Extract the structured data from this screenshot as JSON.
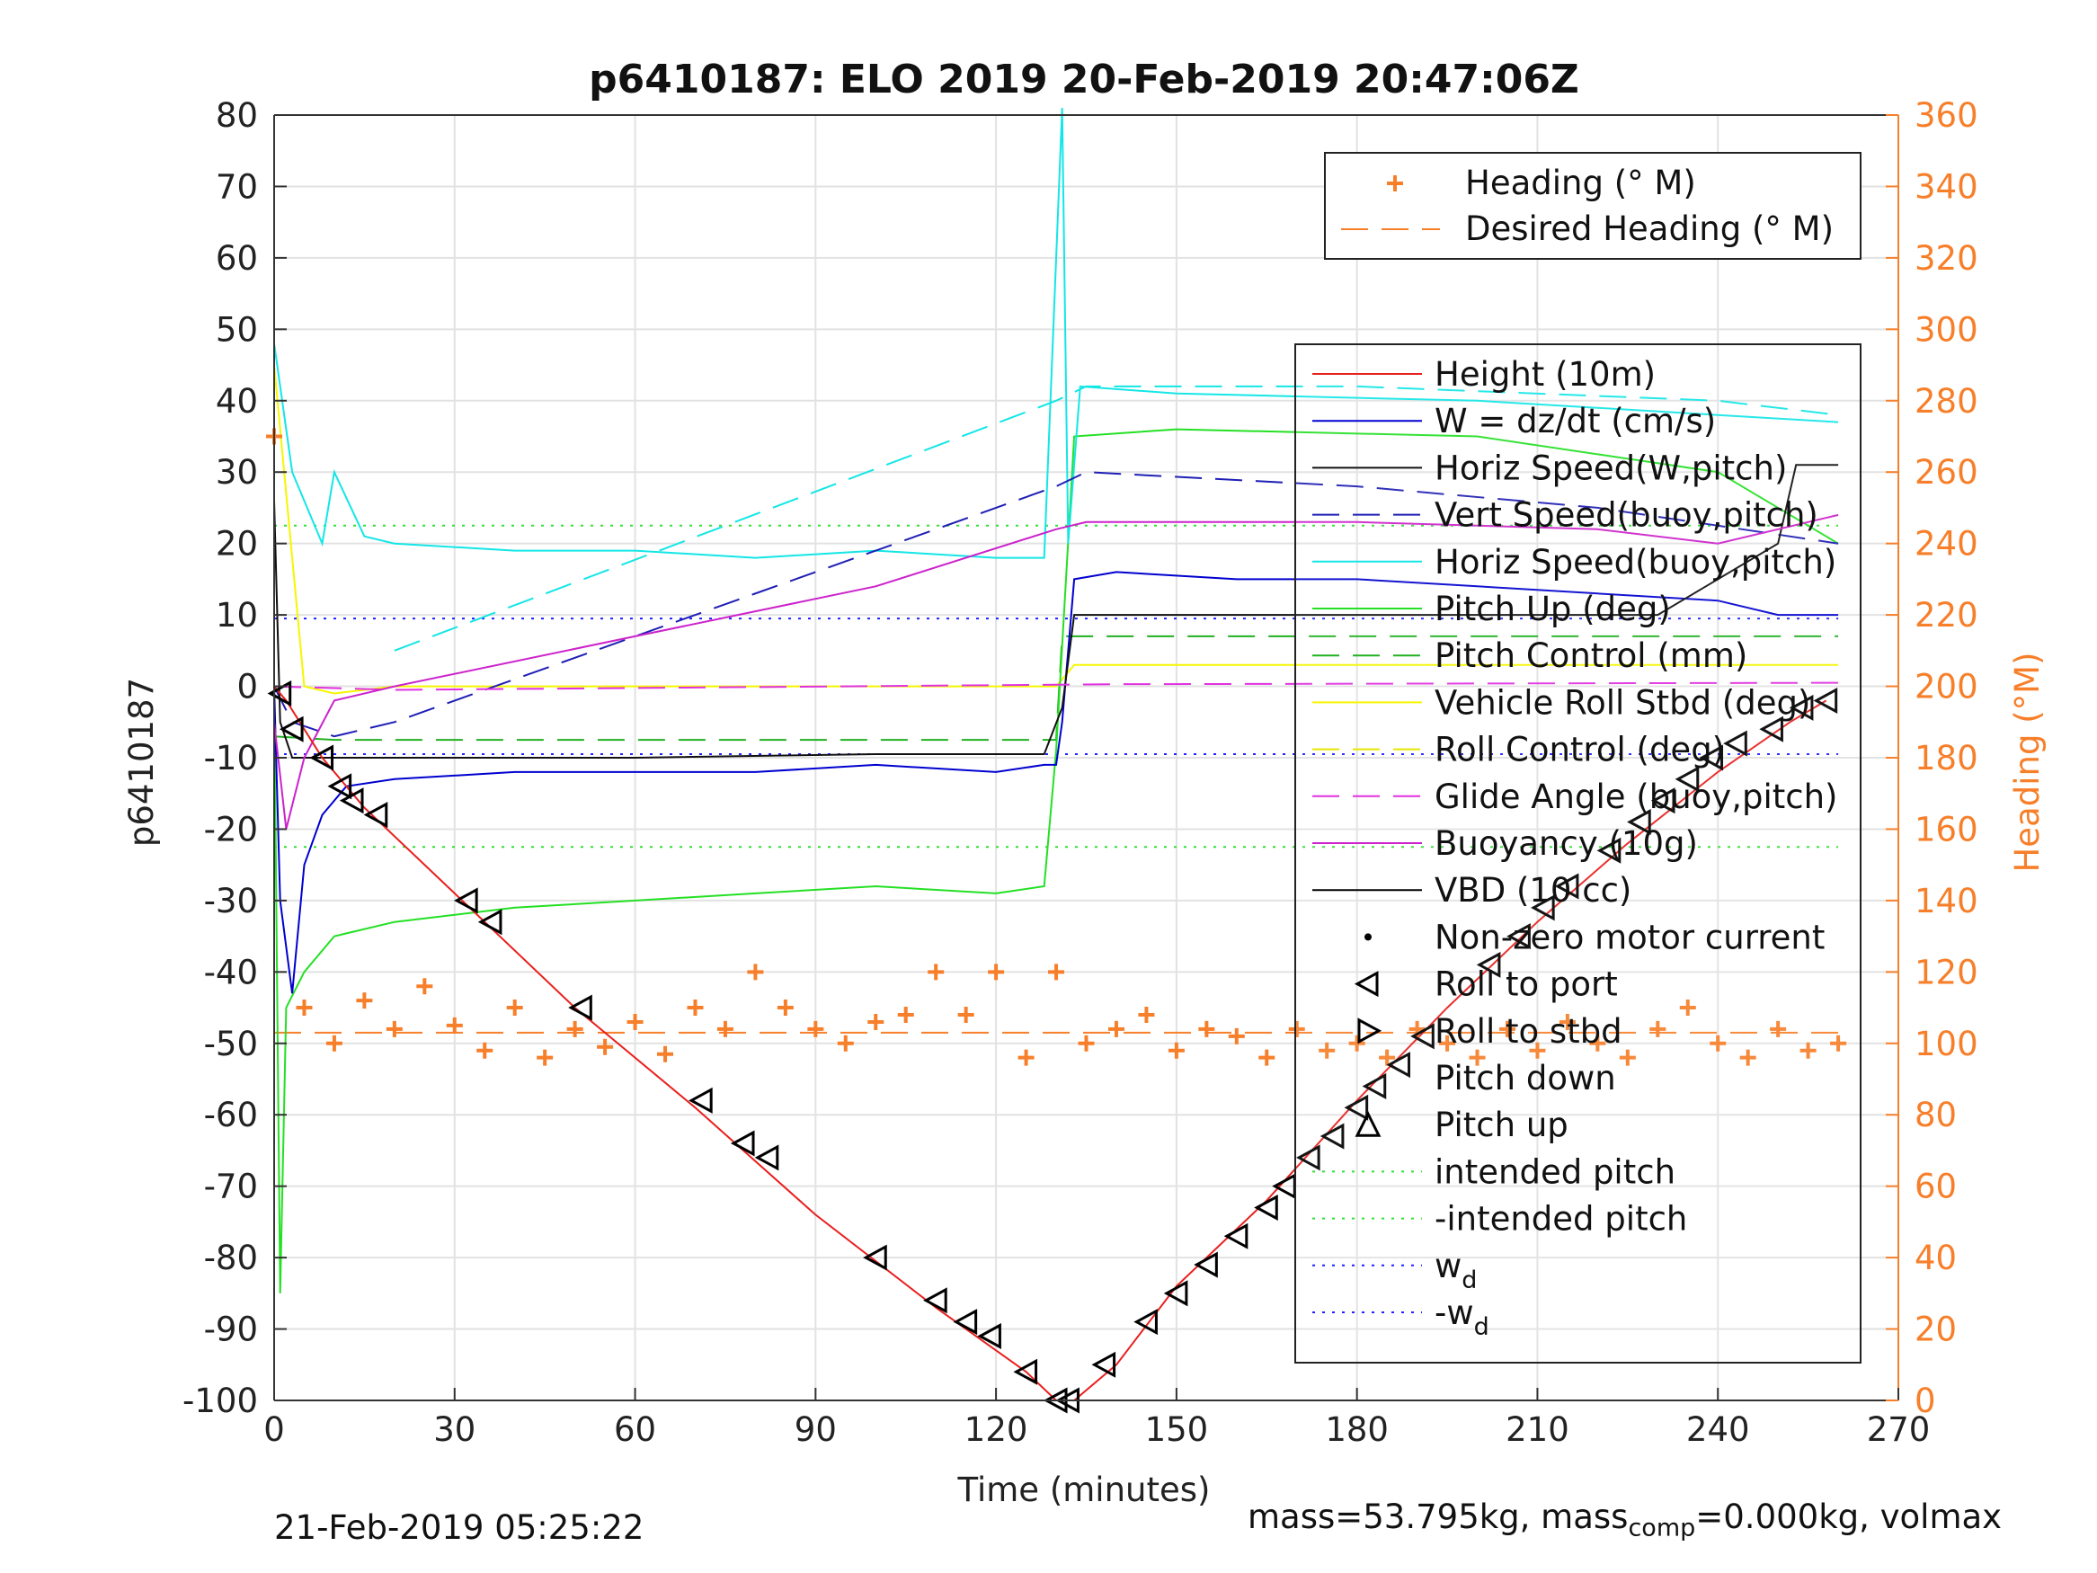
{
  "chart_data": {
    "type": "line",
    "title": "p6410187: ELO 2019 20-Feb-2019 20:47:06Z",
    "xlabel": "Time (minutes)",
    "ylabel": "p6410187",
    "y2label": "Heading (°M)",
    "xlim": [
      0,
      270
    ],
    "ylim": [
      -100,
      80
    ],
    "y2lim": [
      0,
      360
    ],
    "xticks": [
      "0",
      "30",
      "60",
      "90",
      "120",
      "150",
      "180",
      "210",
      "240",
      "270"
    ],
    "yticks": [
      "80",
      "70",
      "60",
      "50",
      "40",
      "30",
      "20",
      "10",
      "0",
      "-10",
      "-20",
      "-30",
      "-40",
      "-50",
      "-60",
      "-70",
      "-80",
      "-90",
      "-100"
    ],
    "y2ticks": [
      "360",
      "340",
      "320",
      "300",
      "280",
      "260",
      "240",
      "220",
      "200",
      "180",
      "160",
      "140",
      "120",
      "100",
      "80",
      "60",
      "40",
      "20",
      "0"
    ],
    "grid": true,
    "colors": {
      "heading": "#f77f2a",
      "height": "#e8201e",
      "w": "#0000d0",
      "horiz_w": "#111111",
      "vert_buoy": "#1f1fb5",
      "horiz_buoy": "#14e6e6",
      "pitch_up": "#24e024",
      "pitch_control": "#20b020",
      "roll": "#f6f600",
      "roll_control": "#e6e600",
      "glide": "#e030e0",
      "buoyancy": "#cc22cc",
      "vbd": "#000000",
      "intended": "#30e030",
      "wd": "#2020ff"
    },
    "legend_top": [
      {
        "label": "Heading (° M)"
      },
      {
        "label": "Desired Heading (° M)"
      }
    ],
    "legend_main": [
      {
        "label": "Height (10m)"
      },
      {
        "label": "W = dz/dt (cm/s)"
      },
      {
        "label": "Horiz Speed(W,pitch)"
      },
      {
        "label": "Vert Speed(buoy,pitch)"
      },
      {
        "label": "Horiz Speed(buoy,pitch)"
      },
      {
        "label": "Pitch Up (deg)"
      },
      {
        "label": "Pitch Control (mm)"
      },
      {
        "label": "Vehicle Roll Stbd (deg)"
      },
      {
        "label": "Roll Control (deg)"
      },
      {
        "label": "Glide Angle (buoy,pitch)"
      },
      {
        "label": "Buoyancy (10g)"
      },
      {
        "label": "VBD (10 cc)"
      },
      {
        "label": "Non-zero motor current"
      },
      {
        "label": "Roll to port"
      },
      {
        "label": "Roll to stbd"
      },
      {
        "label": "Pitch down"
      },
      {
        "label": "Pitch up"
      },
      {
        "label": "intended pitch"
      },
      {
        "label": "-intended pitch"
      },
      {
        "label": "w",
        "sub": "d"
      },
      {
        "label": "-w",
        "sub": "d"
      }
    ],
    "series": {
      "height": {
        "x": [
          0,
          2,
          8,
          15,
          30,
          50,
          70,
          90,
          110,
          125,
          130,
          133,
          140,
          150,
          165,
          180,
          195,
          210,
          225,
          240,
          252,
          258
        ],
        "y": [
          0,
          -2,
          -10,
          -17,
          -29,
          -45,
          -59,
          -74,
          -87,
          -96,
          -100,
          -100,
          -95,
          -84,
          -72,
          -58,
          -45,
          -33,
          -22,
          -12,
          -5,
          -2
        ]
      },
      "height_markers": {
        "x": [
          1,
          3,
          8,
          11,
          13,
          17,
          32,
          36,
          51,
          71,
          78,
          82,
          100,
          110,
          115,
          119,
          125,
          130,
          132,
          138,
          145,
          150,
          155,
          160,
          165,
          168,
          172,
          176,
          180,
          183,
          187,
          191,
          202,
          207,
          211,
          215,
          222,
          227,
          231,
          235,
          239,
          243,
          249,
          254,
          258
        ],
        "y": [
          -1,
          -6,
          -10,
          -14,
          -16,
          -18,
          -30,
          -33,
          -45,
          -58,
          -64,
          -66,
          -80,
          -86,
          -89,
          -91,
          -96,
          -100,
          -100,
          -95,
          -89,
          -85,
          -81,
          -77,
          -73,
          -70,
          -66,
          -63,
          -59,
          -56,
          -53,
          -49,
          -39,
          -35,
          -31,
          -28,
          -23,
          -19,
          -16,
          -13,
          -10,
          -8,
          -6,
          -3,
          -2
        ]
      },
      "heading": {
        "x": [
          0,
          5,
          10,
          15,
          20,
          25,
          30,
          35,
          40,
          45,
          50,
          55,
          60,
          65,
          70,
          75,
          80,
          85,
          90,
          95,
          100,
          105,
          110,
          115,
          120,
          125,
          130,
          135,
          140,
          145,
          150,
          155,
          160,
          165,
          170,
          175,
          180,
          185,
          190,
          195,
          200,
          205,
          210,
          215,
          220,
          225,
          230,
          235,
          240,
          245,
          250,
          255,
          260
        ],
        "y": [
          270,
          110,
          100,
          112,
          104,
          116,
          105,
          98,
          110,
          96,
          104,
          99,
          106,
          97,
          110,
          104,
          120,
          110,
          104,
          100,
          106,
          108,
          120,
          108,
          120,
          96,
          120,
          100,
          104,
          108,
          98,
          104,
          102,
          96,
          104,
          98,
          100,
          96,
          104,
          100,
          96,
          104,
          98,
          106,
          100,
          96,
          104,
          110,
          100,
          96,
          104,
          98,
          100
        ]
      },
      "desired_heading": {
        "x": [
          0,
          260
        ],
        "y": [
          103,
          103
        ]
      },
      "w": {
        "x": [
          0,
          1,
          3,
          5,
          8,
          12,
          20,
          40,
          60,
          80,
          100,
          120,
          128,
          130,
          131,
          133,
          140,
          160,
          180,
          200,
          220,
          240,
          250,
          260
        ],
        "y": [
          0,
          -30,
          -43,
          -25,
          -18,
          -14,
          -13,
          -12,
          -12,
          -12,
          -11,
          -12,
          -11,
          -11,
          -5,
          15,
          16,
          15,
          15,
          14,
          13,
          12,
          10,
          10
        ]
      },
      "horiz_w": {
        "x": [
          0,
          1,
          3,
          8,
          20,
          60,
          100,
          128,
          131,
          133,
          180,
          230,
          240,
          250,
          253,
          260
        ],
        "y": [
          26,
          -5,
          -10,
          -10,
          -10,
          -10,
          -9.5,
          -9.5,
          -3,
          10,
          10,
          10,
          15,
          20,
          31,
          31
        ]
      },
      "vert_buoy": {
        "x": [
          0,
          3,
          10,
          20,
          130,
          135,
          180,
          220,
          260
        ],
        "y": [
          0,
          -5,
          -7,
          -5,
          28,
          30,
          28,
          25,
          20
        ]
      },
      "horiz_buoy": {
        "x": [
          0,
          3,
          8,
          10,
          15,
          20,
          40,
          60,
          80,
          100,
          120,
          128,
          131,
          132,
          134,
          150,
          200,
          240,
          260
        ],
        "y": [
          48,
          30,
          20,
          30,
          21,
          20,
          19,
          19,
          18,
          19,
          18,
          18,
          81,
          20,
          42,
          41,
          40,
          38,
          37
        ]
      },
      "horiz_buoy_dashed": {
        "x": [
          20,
          130,
          135,
          180,
          240,
          260
        ],
        "y": [
          5,
          40,
          42,
          42,
          40,
          38
        ]
      },
      "pitch_up": {
        "x": [
          0,
          1,
          2,
          5,
          10,
          20,
          40,
          60,
          80,
          100,
          120,
          128,
          130,
          133,
          150,
          200,
          240,
          260
        ],
        "y": [
          0,
          -85,
          -45,
          -40,
          -35,
          -33,
          -31,
          -30,
          -29,
          -28,
          -29,
          -28,
          -9,
          35,
          36,
          35,
          30,
          20
        ]
      },
      "pitch_control": {
        "x": [
          0,
          10,
          130,
          131,
          260
        ],
        "y": [
          -7,
          -7.5,
          -7.5,
          7,
          7
        ]
      },
      "roll": {
        "x": [
          0,
          5,
          10,
          20,
          40,
          60,
          80,
          100,
          120,
          130,
          133,
          150,
          200,
          240,
          260
        ],
        "y": [
          45,
          0,
          -1,
          0,
          0,
          0,
          0,
          0,
          0,
          0,
          3,
          3,
          3,
          3,
          3
        ]
      },
      "glide": {
        "x": [
          0,
          20,
          140,
          260
        ],
        "y": [
          0,
          -0.5,
          0.3,
          0.5
        ]
      },
      "buoyancy": {
        "x": [
          0,
          2,
          5,
          10,
          20,
          60,
          100,
          130,
          135,
          180,
          220,
          240,
          260
        ],
        "y": [
          -5,
          -20,
          -10,
          -2,
          0,
          7,
          14,
          22,
          23,
          23,
          22,
          20,
          24
        ]
      },
      "intended_pitch": {
        "x": [
          0,
          260
        ],
        "y": [
          22.5,
          22.5
        ]
      },
      "neg_intended_pitch": {
        "x": [
          0,
          260
        ],
        "y": [
          -22.5,
          -22.5
        ]
      },
      "wd": {
        "x": [
          0,
          260
        ],
        "y": [
          9.5,
          9.5
        ]
      },
      "neg_wd": {
        "x": [
          0,
          260
        ],
        "y": [
          -9.5,
          -9.5
        ]
      }
    },
    "footer_left": "21-Feb-2019 05:25:22",
    "footer_right_a": "mass=53.795kg, mass",
    "footer_right_sub": "comp",
    "footer_right_b": "=0.000kg, volmax"
  }
}
